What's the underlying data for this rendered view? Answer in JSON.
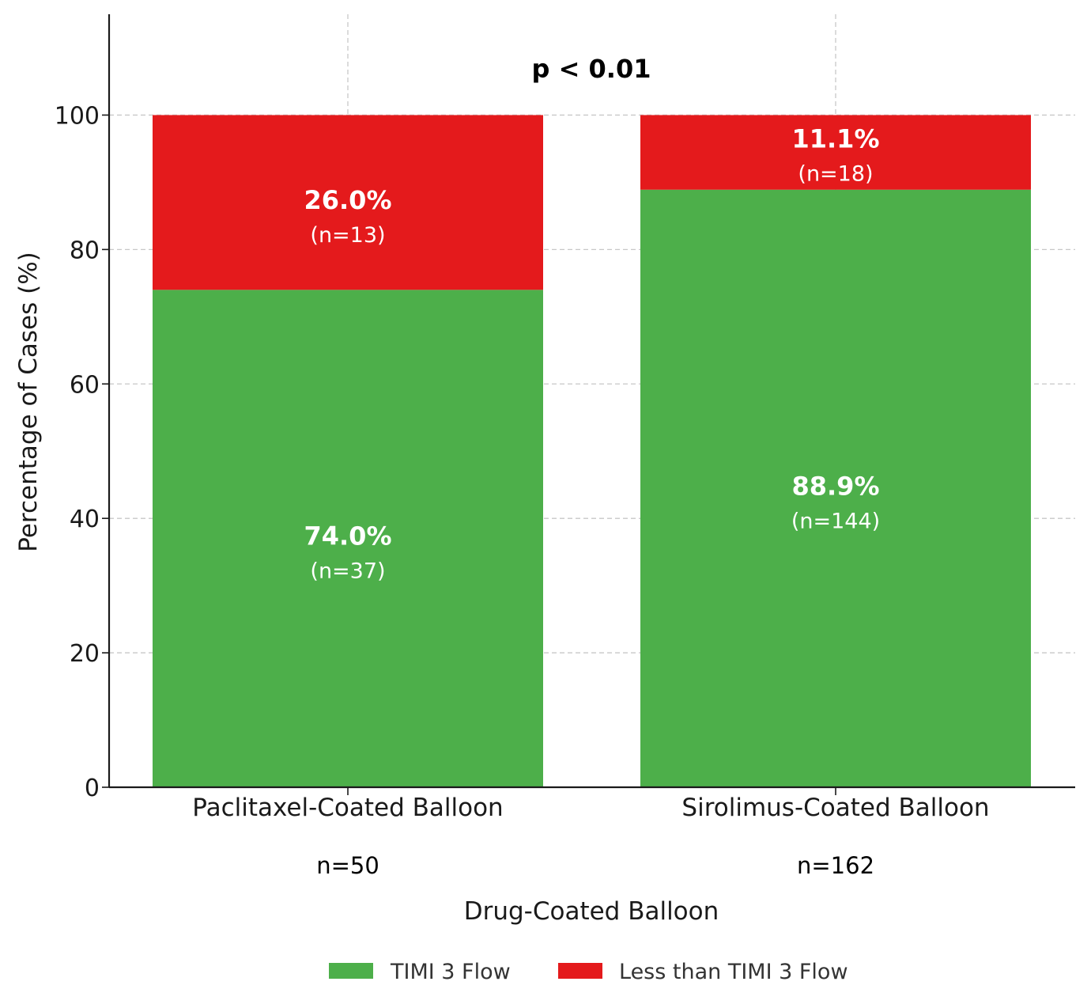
{
  "chart_data": {
    "type": "bar",
    "stacked": true,
    "categories": [
      "Paclitaxel-Coated Balloon",
      "Sirolimus-Coated Balloon"
    ],
    "group_sizes": [
      "n=50",
      "n=162"
    ],
    "series": [
      {
        "name": "TIMI 3 Flow",
        "color": "#4daf4a",
        "values": [
          74.0,
          88.9
        ],
        "percent_labels": [
          "74.0%",
          "88.9%"
        ],
        "count_labels": [
          "(n=37)",
          "(n=144)"
        ]
      },
      {
        "name": "Less than TIMI 3 Flow",
        "color": "#e41a1c",
        "values": [
          26.0,
          11.1
        ],
        "percent_labels": [
          "26.0%",
          "11.1%"
        ],
        "count_labels": [
          "(n=13)",
          "(n=18)"
        ]
      }
    ],
    "annotation": "p < 0.01",
    "xlabel": "Drug-Coated Balloon",
    "ylabel": "Percentage of Cases (%)",
    "ylim": [
      0,
      115
    ],
    "yticks": [
      0,
      20,
      40,
      60,
      80,
      100
    ],
    "grid": true,
    "legend_position": "bottom-center"
  }
}
